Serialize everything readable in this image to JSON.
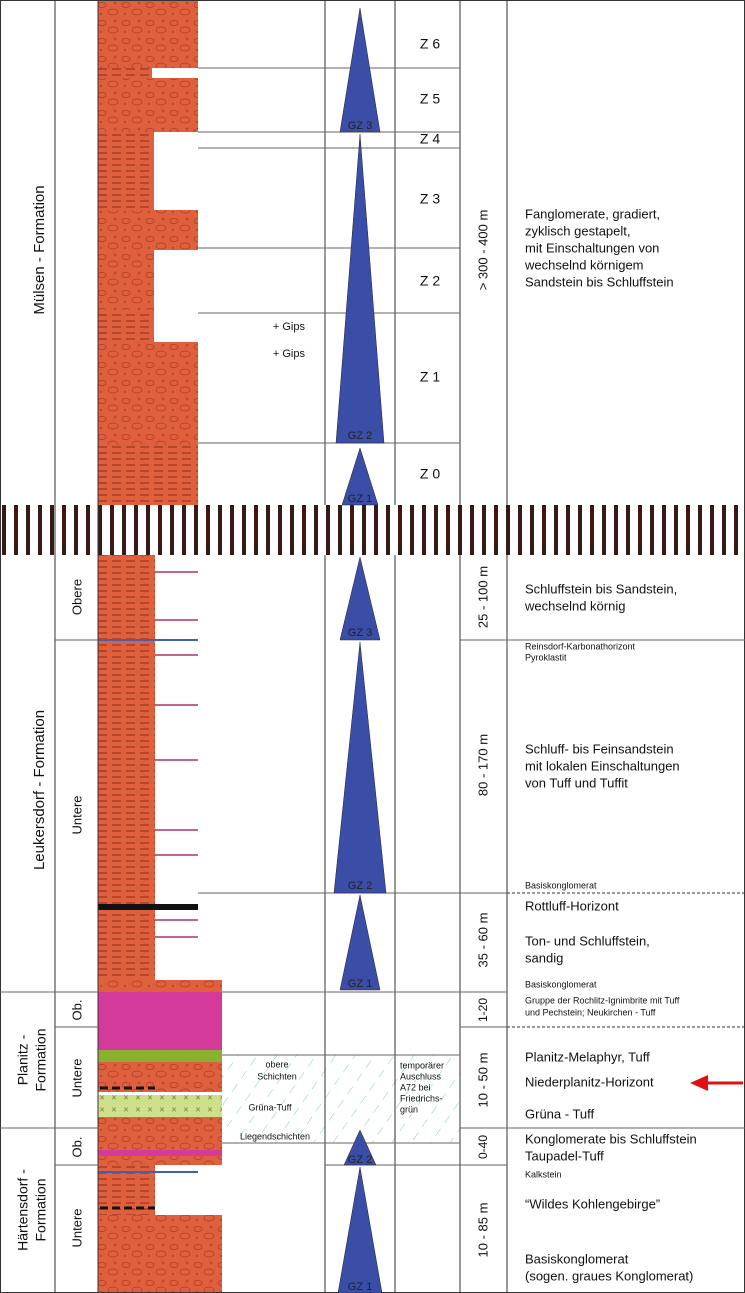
{
  "formations": [
    {
      "name": "Mülsen - Formation",
      "zones": [
        "Z 6",
        "Z 5",
        "Z 4",
        "Z 3",
        "Z 2",
        "Z 1",
        "Z 0"
      ],
      "cycles": [
        "GZ 3",
        "GZ 2",
        "GZ 1"
      ],
      "thickness": "> 300 - 400 m",
      "description": [
        "Fanglomerate, gradiert,",
        "zyklisch gestapelt,",
        "mit Einschaltungen von",
        "wechselnd körnigem",
        "Sandstein bis Schluffstein"
      ],
      "notes": [
        "+ Gips",
        "+ Gips"
      ]
    },
    {
      "name": "Leukersdorf - Formation",
      "members": [
        "Obere",
        "Untere"
      ],
      "cycles": [
        "GZ 3",
        "GZ 2",
        "GZ 1"
      ],
      "thickness": [
        "25 - 100 m",
        "80 - 170 m",
        "35 - 60 m"
      ],
      "description": {
        "obere": [
          "Schluffstein bis Sandstein,",
          "wechselnd körnig"
        ],
        "top_small": [
          "Reinsdorf-Karbonathorizont",
          "Pyroklastit"
        ],
        "middle": [
          "Schluff- bis Feinsandstein",
          "mit lokalen Einschaltungen",
          "von Tuff und Tuffit"
        ],
        "base_1": "Basiskonglomerat",
        "lower_title": "Rottluff-Horizont",
        "lower": [
          "Ton- und Schluffstein,",
          "sandig"
        ],
        "base_2": "Basiskonglomerat"
      }
    },
    {
      "name": [
        "Planitz -",
        "Formation"
      ],
      "members": [
        "Ob.",
        "Untere"
      ],
      "thickness": [
        "1-20",
        "10 - 50 m"
      ],
      "description": {
        "ob": [
          "Gruppe der Rochlitz-Ignimbrite mit Tuff",
          "und Pechstein; Neukirchen - Tuff"
        ],
        "untere": [
          "Planitz-Melaphyr, Tuff",
          "Niederplanitz-Horizont",
          "Grüna - Tuff"
        ]
      },
      "notes": {
        "obere": [
          "obere",
          "Schichten"
        ],
        "gruena": "Grüna-Tuff",
        "liegend": "Liegendschichten",
        "exposure": [
          "temporärer",
          "Auschluss",
          "A72 bei",
          "Friedrichs-",
          "grün"
        ]
      }
    },
    {
      "name": [
        "Härtensdorf -",
        "Formation"
      ],
      "members": [
        "Ob.",
        "Untere"
      ],
      "cycles": [
        "GZ 2",
        "GZ 1"
      ],
      "thickness": [
        "0-40",
        "10 - 85 m"
      ],
      "description": {
        "ob": [
          "Konglomerate bis Schluffstein",
          "Taupadel-Tuff"
        ],
        "kalk": "Kalkstein",
        "wild": "“Wildes Kohlengebirge”",
        "base": [
          "Basiskonglomerat",
          "(sogen. graues Konglomerat)"
        ]
      }
    }
  ]
}
